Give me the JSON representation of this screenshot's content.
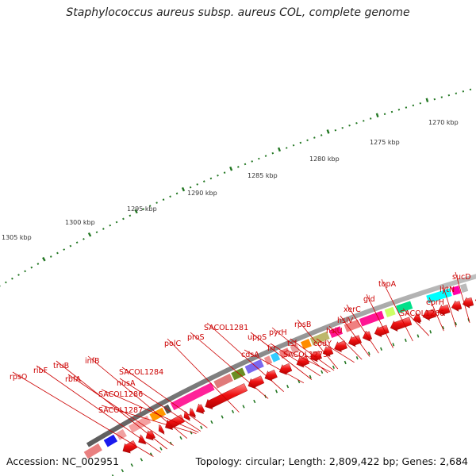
{
  "title": "Staphylococcus aureus subsp. aureus COL, complete genome",
  "footer": {
    "accession": "Accession: NC_002951",
    "summary": "Topology: circular; Length: 2,809,422 bp; Genes: 2,684"
  },
  "colors": {
    "gene_arrow": "#ee1111",
    "label_text": "#cc0000",
    "backbone": "#888888",
    "tick": "#227722",
    "scale_text": "#333333"
  },
  "scale_labels": [
    "1305 kbp",
    "1300 kbp",
    "1295 kbp",
    "1290 kbp",
    "1285 kbp",
    "1280 kbp",
    "1275 kbp",
    "1270 kbp"
  ],
  "gene_labels": [
    "rpsO",
    "ribF",
    "truB",
    "rbfA",
    "infB",
    "SACOL1284",
    "nusA",
    "SACOL1286",
    "SACOL1287",
    "polC",
    "proS",
    "SACOL1281",
    "cdsA",
    "uppS",
    "frr",
    "pyrH",
    "tsf",
    "rpsB",
    "SACOL1275",
    "codY",
    "hslU",
    "hslV",
    "xerC",
    "gid",
    "topA",
    "SACOL1266",
    "eprH",
    "lytN",
    "sucD"
  ]
}
